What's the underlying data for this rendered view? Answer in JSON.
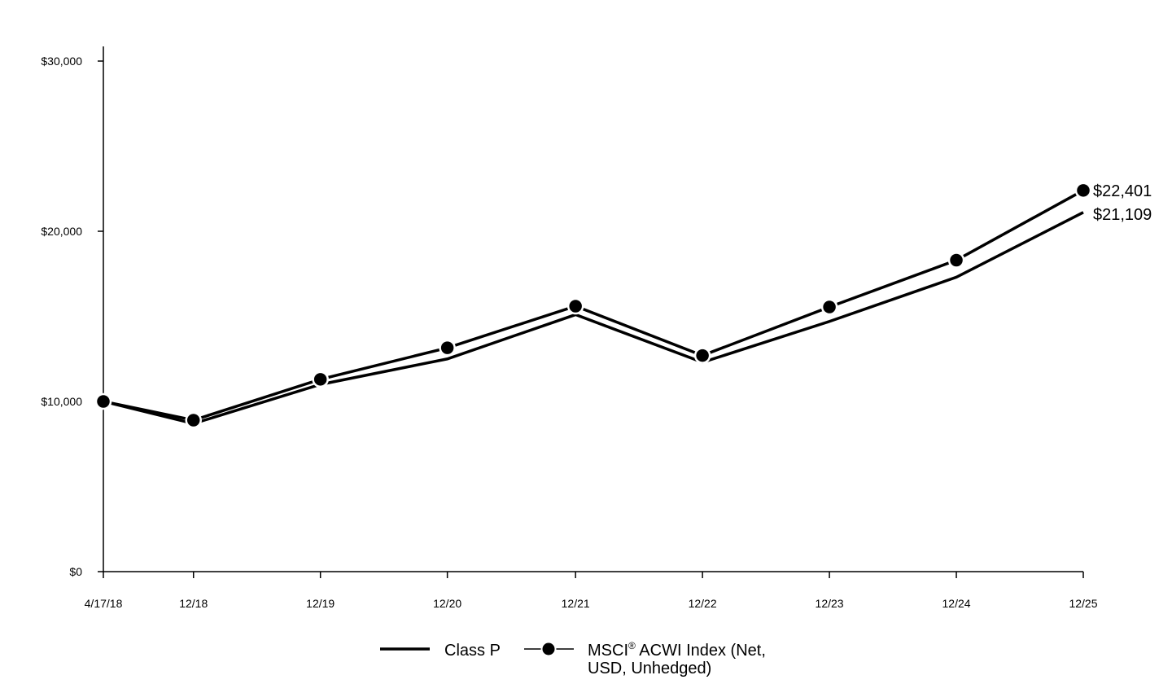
{
  "chart_data": {
    "type": "line",
    "title": "",
    "xlabel": "",
    "ylabel": "",
    "ylim": [
      0,
      30000
    ],
    "y_ticks": [
      {
        "value": 0,
        "label": "$0"
      },
      {
        "value": 10000,
        "label": "$10,000"
      },
      {
        "value": 20000,
        "label": "$20,000"
      },
      {
        "value": 30000,
        "label": "$30,000"
      }
    ],
    "categories": [
      "4/17/18",
      "12/18",
      "12/19",
      "12/20",
      "12/21",
      "12/22",
      "12/23",
      "12/24",
      "12/25"
    ],
    "x_time": [
      0,
      0.71,
      1.71,
      2.71,
      3.72,
      4.72,
      5.72,
      6.72,
      7.72
    ],
    "series": [
      {
        "name": "Class P",
        "values": [
          10000,
          8700,
          11000,
          12500,
          15100,
          12300,
          14700,
          17300,
          21109
        ],
        "marker": "none",
        "color": "#000000",
        "end_label": "$21,109"
      },
      {
        "name": "MSCI® ACWI Index (Net, USD, Unhedged)",
        "values": [
          10000,
          8900,
          11300,
          13150,
          15600,
          12700,
          15550,
          18300,
          22401
        ],
        "marker": "circle",
        "color": "#000000",
        "end_label": "$22,401"
      }
    ],
    "legend": {
      "position": "bottom-center",
      "class_p_label": "Class P",
      "msci_label_part1": "MSCI",
      "msci_label_sup": "®",
      "msci_label_part2": " ACWI Index (Net,",
      "msci_label_line2": "USD, Unhedged)"
    },
    "grid": false
  }
}
